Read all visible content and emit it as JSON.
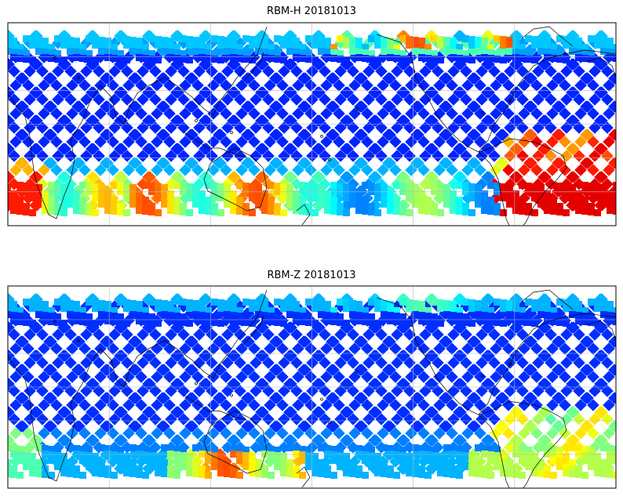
{
  "chart_data": [
    {
      "type": "heatmap",
      "title": "RBM-H 20181013",
      "projection": "equirectangular, Pacific-centered",
      "grid": true,
      "pattern": "satellite swath tracks forming diamond lattice",
      "colormap": "jet",
      "dominant_value_color": "#6b6bf5",
      "high_value_regions": [
        "south polar band",
        "north polar band (eastern Pacific)",
        "South Atlantic"
      ]
    },
    {
      "type": "heatmap",
      "title": "RBM-Z 20181013",
      "projection": "equirectangular, Pacific-centered",
      "grid": true,
      "pattern": "satellite swath tracks forming diamond lattice",
      "colormap": "jet",
      "dominant_value_color": "#6b6bf5",
      "high_value_regions": [
        "south polar band (central)",
        "South Atlantic"
      ]
    }
  ]
}
